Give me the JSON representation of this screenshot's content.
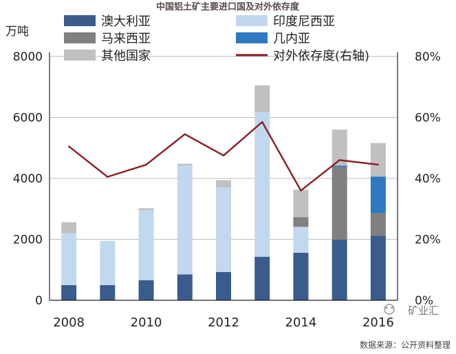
{
  "page": {
    "source_note": "数据来源：公开资料整理",
    "watermark": "矿业汇"
  },
  "chart_data": {
    "type": "bar",
    "stacked": true,
    "title": "中国铝土矿主要进口国及对外依存度",
    "ylabel": "万吨",
    "xlabel": "",
    "categories": [
      "2008",
      "2009",
      "2010",
      "2011",
      "2012",
      "2013",
      "2014",
      "2015",
      "2016"
    ],
    "x_tick_labels": [
      "2008",
      "2010",
      "2012",
      "2014",
      "2016"
    ],
    "ylim": [
      0,
      8000
    ],
    "y_tick_labels": [
      "0",
      "2000",
      "4000",
      "6000",
      "8000"
    ],
    "y2lim": [
      0,
      80
    ],
    "y2_tick_labels": [
      "0%",
      "20%",
      "40%",
      "60%",
      "80%"
    ],
    "grid": "horizontal",
    "legend_position": "top",
    "series": [
      {
        "name": "澳大利亚",
        "color": "#3a5c8c",
        "values": [
          500,
          500,
          660,
          850,
          930,
          1430,
          1560,
          1990,
          2120
        ]
      },
      {
        "name": "印度尼西亚",
        "color": "#c2d8ee",
        "values": [
          1700,
          1450,
          2300,
          3580,
          2770,
          4750,
          850,
          0,
          0
        ]
      },
      {
        "name": "马来西亚",
        "color": "#808080",
        "values": [
          0,
          0,
          0,
          0,
          0,
          0,
          320,
          2380,
          740
        ]
      },
      {
        "name": "几内亚",
        "color": "#2f79c2",
        "values": [
          0,
          0,
          0,
          0,
          0,
          0,
          0,
          50,
          1200
        ]
      },
      {
        "name": "其他国家",
        "color": "#c0c0c0",
        "values": [
          360,
          0,
          60,
          50,
          240,
          870,
          900,
          1180,
          1100
        ]
      }
    ],
    "line_series": {
      "name": "对外依存度(右轴)",
      "axis": "right",
      "color": "#8b1c22",
      "values": [
        50.5,
        40.5,
        44.5,
        54.5,
        47.5,
        58.5,
        36.0,
        46.0,
        44.5
      ]
    }
  }
}
